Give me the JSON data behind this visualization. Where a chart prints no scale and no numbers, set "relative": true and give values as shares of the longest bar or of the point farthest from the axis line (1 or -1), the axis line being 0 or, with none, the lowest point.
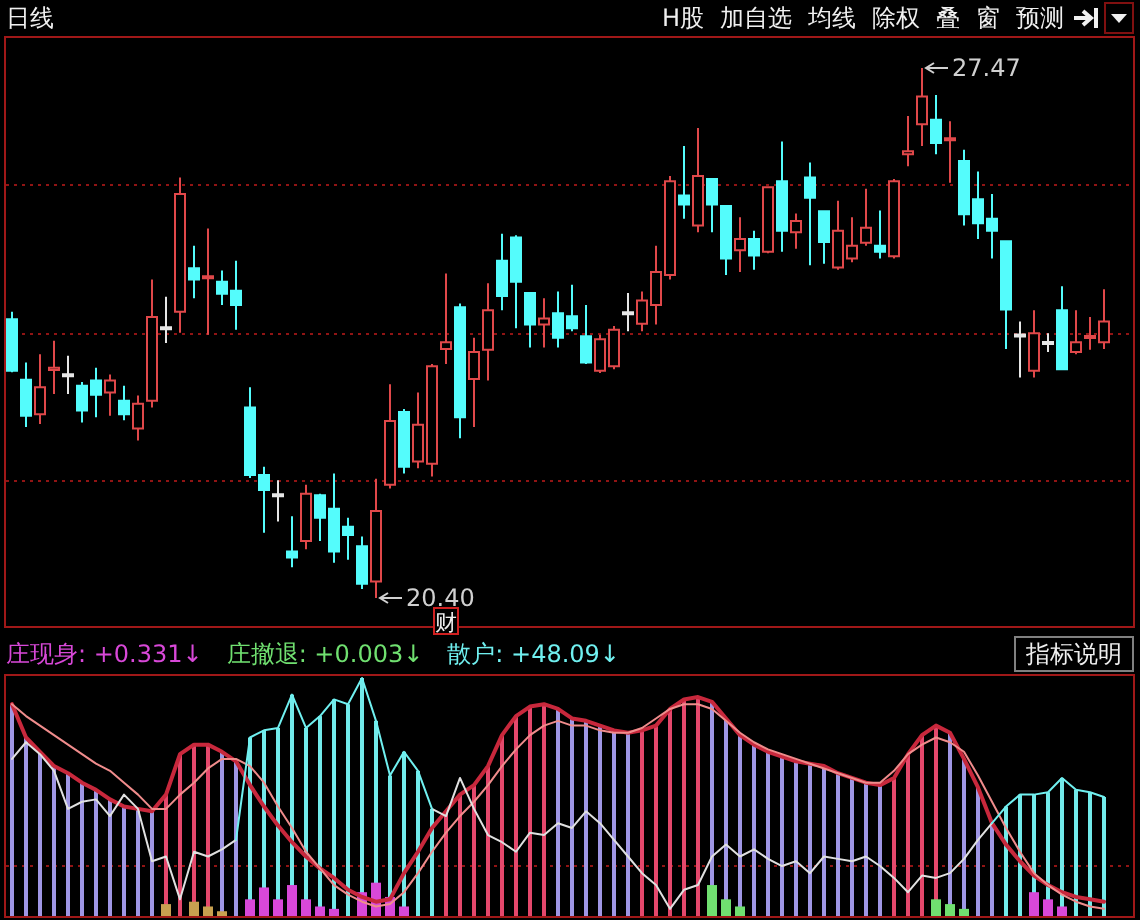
{
  "chart_data": [
    {
      "type": "candlestick",
      "title": "日线",
      "categories": [
        null,
        null,
        null,
        null,
        null,
        null,
        null,
        null,
        null,
        null,
        null,
        null,
        null,
        null,
        null,
        null,
        null,
        null,
        null,
        null,
        null,
        null,
        null,
        null,
        null,
        null,
        null,
        null,
        null,
        null,
        null,
        null,
        null,
        null,
        null,
        null,
        null,
        null,
        null,
        null,
        null,
        null,
        null,
        null,
        null,
        null,
        null,
        null,
        null,
        null,
        null,
        null,
        null,
        null,
        null,
        null,
        null,
        null,
        null,
        null,
        null,
        null,
        null,
        null,
        null,
        null,
        null,
        null,
        null,
        null,
        null,
        null,
        null,
        null,
        null,
        null,
        null,
        null,
        null
      ],
      "ohlc": [
        [
          24.12,
          24.22,
          23.41,
          23.43
        ],
        [
          23.31,
          23.54,
          22.68,
          22.83
        ],
        [
          22.85,
          23.65,
          22.72,
          23.21
        ],
        [
          23.44,
          23.83,
          23.12,
          23.47
        ],
        [
          23.37,
          23.63,
          23.12,
          23.37
        ],
        [
          23.23,
          23.28,
          22.74,
          22.9
        ],
        [
          23.3,
          23.47,
          22.81,
          23.11
        ],
        [
          23.14,
          23.38,
          22.83,
          23.3
        ],
        [
          23.03,
          23.23,
          22.77,
          22.85
        ],
        [
          22.66,
          23.1,
          22.5,
          22.99
        ],
        [
          23.03,
          24.65,
          22.94,
          24.15
        ],
        [
          24.0,
          24.42,
          23.8,
          24.0
        ],
        [
          24.22,
          26.01,
          23.94,
          25.79
        ],
        [
          24.8,
          25.1,
          24.4,
          24.65
        ],
        [
          24.67,
          25.33,
          23.91,
          24.69
        ],
        [
          24.62,
          24.77,
          24.31,
          24.46
        ],
        [
          24.5,
          24.9,
          23.98,
          24.31
        ],
        [
          22.94,
          23.21,
          22.0,
          22.04
        ],
        [
          22.04,
          22.15,
          21.27,
          21.84
        ],
        [
          21.77,
          21.97,
          21.42,
          21.77
        ],
        [
          21.02,
          21.49,
          20.81,
          20.94
        ],
        [
          21.16,
          21.91,
          21.05,
          21.79
        ],
        [
          21.77,
          21.79,
          21.16,
          21.47
        ],
        [
          21.59,
          22.06,
          20.87,
          21.02
        ],
        [
          21.35,
          21.47,
          20.91,
          21.24
        ],
        [
          21.09,
          21.22,
          20.52,
          20.59
        ],
        [
          20.62,
          21.99,
          20.4,
          21.56
        ],
        [
          21.91,
          23.25,
          21.86,
          22.76
        ],
        [
          22.88,
          22.92,
          22.06,
          22.15
        ],
        [
          22.22,
          23.14,
          22.13,
          22.71
        ],
        [
          22.19,
          23.52,
          22.02,
          23.49
        ],
        [
          23.72,
          24.73,
          23.52,
          23.81
        ],
        [
          24.28,
          24.33,
          22.53,
          22.81
        ],
        [
          23.32,
          23.87,
          22.68,
          23.68
        ],
        [
          23.71,
          24.6,
          23.3,
          24.24
        ],
        [
          24.9,
          25.26,
          24.24,
          24.43
        ],
        [
          25.21,
          25.24,
          24.0,
          24.62
        ],
        [
          24.47,
          24.47,
          23.74,
          24.05
        ],
        [
          24.05,
          24.4,
          23.74,
          24.13
        ],
        [
          24.2,
          24.49,
          23.74,
          23.87
        ],
        [
          24.16,
          24.58,
          23.96,
          24.0
        ],
        [
          23.89,
          24.31,
          23.52,
          23.54
        ],
        [
          23.43,
          23.91,
          23.4,
          23.85
        ],
        [
          23.49,
          24.03,
          23.45,
          23.98
        ],
        [
          24.2,
          24.47,
          23.96,
          24.2
        ],
        [
          24.06,
          24.49,
          23.96,
          24.37
        ],
        [
          24.31,
          25.1,
          24.05,
          24.75
        ],
        [
          24.71,
          26.03,
          24.65,
          25.96
        ],
        [
          25.77,
          26.43,
          25.46,
          25.65
        ],
        [
          25.37,
          26.67,
          25.28,
          26.03
        ],
        [
          25.99,
          25.99,
          25.28,
          25.65
        ],
        [
          25.63,
          25.63,
          24.71,
          24.93
        ],
        [
          25.04,
          25.48,
          24.75,
          25.19
        ],
        [
          25.19,
          25.3,
          24.78,
          24.97
        ],
        [
          25.02,
          25.88,
          25.0,
          25.88
        ],
        [
          25.96,
          26.49,
          25.02,
          25.3
        ],
        [
          25.28,
          25.53,
          25.06,
          25.43
        ],
        [
          26.01,
          26.21,
          24.84,
          25.74
        ],
        [
          25.56,
          25.56,
          24.86,
          25.15
        ],
        [
          24.81,
          25.7,
          24.78,
          25.3
        ],
        [
          24.93,
          25.48,
          24.88,
          25.1
        ],
        [
          25.14,
          25.86,
          25.1,
          25.34
        ],
        [
          25.1,
          25.57,
          24.93,
          25.02
        ],
        [
          24.96,
          25.99,
          24.93,
          25.96
        ],
        [
          26.32,
          26.83,
          26.16,
          26.36
        ],
        [
          26.72,
          27.47,
          26.43,
          27.09
        ],
        [
          26.78,
          27.11,
          26.32,
          26.47
        ],
        [
          26.51,
          26.76,
          25.94,
          26.53
        ],
        [
          26.23,
          26.38,
          25.37,
          25.52
        ],
        [
          25.72,
          26.09,
          25.19,
          25.4
        ],
        [
          25.46,
          25.79,
          24.93,
          25.3
        ],
        [
          25.16,
          25.16,
          23.72,
          24.25
        ],
        [
          23.9,
          24.09,
          23.34,
          23.9
        ],
        [
          23.43,
          24.24,
          23.34,
          23.93
        ],
        [
          23.8,
          23.93,
          23.68,
          23.8
        ],
        [
          24.24,
          24.56,
          23.45,
          23.45
        ],
        [
          23.68,
          24.24,
          23.65,
          23.81
        ],
        [
          23.87,
          24.15,
          23.71,
          23.89
        ],
        [
          23.81,
          24.52,
          23.72,
          24.09
        ]
      ],
      "colors": [
        "#54fcfc",
        "#54fcfc",
        "#e0484a",
        "#e0484a",
        "#e6e6e6",
        "#54fcfc",
        "#54fcfc",
        "#e0484a",
        "#54fcfc",
        "#e0484a",
        "#e0484a",
        "#e6e6e6",
        "#e0484a",
        "#54fcfc",
        "#e0484a",
        "#54fcfc",
        "#54fcfc",
        "#54fcfc",
        "#54fcfc",
        "#e6e6e6",
        "#54fcfc",
        "#e0484a",
        "#54fcfc",
        "#54fcfc",
        "#54fcfc",
        "#54fcfc",
        "#e0484a",
        "#e0484a",
        "#54fcfc",
        "#e0484a",
        "#e0484a",
        "#e0484a",
        "#54fcfc",
        "#e0484a",
        "#e0484a",
        "#54fcfc",
        "#54fcfc",
        "#54fcfc",
        "#e0484a",
        "#54fcfc",
        "#54fcfc",
        "#54fcfc",
        "#e0484a",
        "#e0484a",
        "#e6e6e6",
        "#e0484a",
        "#e0484a",
        "#e0484a",
        "#54fcfc",
        "#e0484a",
        "#54fcfc",
        "#54fcfc",
        "#e0484a",
        "#54fcfc",
        "#e0484a",
        "#54fcfc",
        "#e0484a",
        "#54fcfc",
        "#54fcfc",
        "#e0484a",
        "#e0484a",
        "#e0484a",
        "#54fcfc",
        "#e0484a",
        "#e0484a",
        "#e0484a",
        "#54fcfc",
        "#e0484a",
        "#54fcfc",
        "#54fcfc",
        "#54fcfc",
        "#54fcfc",
        "#e6e6e6",
        "#e0484a",
        "#e6e6e6",
        "#54fcfc",
        "#e0484a",
        "#e0484a",
        "#e0484a"
      ],
      "ref_lines": [
        {
          "axis": "y",
          "value": 25.91,
          "color": "#901414",
          "line_style": "dotted"
        },
        {
          "axis": "y",
          "value": 23.92,
          "color": "#901414",
          "line_style": "dotted"
        },
        {
          "axis": "y",
          "value": 21.96,
          "color": "#901414",
          "line_style": "dotted"
        }
      ],
      "annotations": [
        "27.47",
        "20.40",
        "财",
        "H股",
        "加自选",
        "均线",
        "除权",
        "叠",
        "窗",
        "预测"
      ]
    },
    {
      "type": "bar",
      "relative": true,
      "categories": [
        null,
        null,
        null,
        null,
        null,
        null,
        null,
        null,
        null,
        null,
        null,
        null,
        null,
        null,
        null,
        null,
        null,
        null,
        null,
        null,
        null,
        null,
        null,
        null,
        null,
        null,
        null,
        null,
        null,
        null,
        null,
        null,
        null,
        null,
        null,
        null,
        null,
        null,
        null,
        null,
        null,
        null,
        null,
        null,
        null,
        null,
        null,
        null,
        null,
        null,
        null,
        null,
        null,
        null,
        null,
        null,
        null,
        null,
        null,
        null,
        null,
        null,
        null,
        null,
        null,
        null,
        null,
        null,
        null,
        null,
        null,
        null,
        null,
        null,
        null,
        null,
        null,
        null,
        null
      ],
      "series": [
        {
          "values": [
            0.89,
            0.75,
            0.69,
            0.63,
            0.6,
            0.56,
            0.53,
            0.49,
            0.46,
            0.45,
            0.44,
            0.51,
            0.68,
            0.72,
            0.72,
            0.69,
            0.65,
            0.75,
            0.78,
            0.79,
            0.93,
            0.79,
            0.84,
            0.91,
            0.89,
            1.0,
            0.82,
            0.59,
            0.69,
            0.61,
            0.45,
            0.44,
            0.51,
            0.55,
            0.63,
            0.76,
            0.84,
            0.88,
            0.89,
            0.87,
            0.83,
            0.82,
            0.8,
            0.78,
            0.77,
            0.78,
            0.8,
            0.87,
            0.91,
            0.92,
            0.9,
            0.83,
            0.76,
            0.72,
            0.69,
            0.67,
            0.65,
            0.64,
            0.63,
            0.6,
            0.58,
            0.56,
            0.55,
            0.58,
            0.68,
            0.76,
            0.8,
            0.77,
            0.66,
            0.54,
            0.39,
            0.46,
            0.51,
            0.51,
            0.52,
            0.58,
            0.53,
            0.52,
            0.5
          ],
          "colors": [
            "#9f96e4",
            "#9f96e4",
            "#9f96e4",
            "#9f96e4",
            "#9f96e4",
            "#9f96e4",
            "#9f96e4",
            "#9f96e4",
            "#9f96e4",
            "#9f96e4",
            "#9f96e4",
            "#e4486c",
            "#e4486c",
            "#e4486c",
            "#e4486c",
            "#9f96e4",
            "#9f96e4",
            "#72eaea",
            "#72eaea",
            "#72eaea",
            "#72eaea",
            "#72eaea",
            "#72eaea",
            "#72eaea",
            "#72eaea",
            "#72eaea",
            "#72eaea",
            "#72eaea",
            "#72eaea",
            "#72eaea",
            "#72eaea",
            "#e4486c",
            "#e4486c",
            "#e4486c",
            "#e4486c",
            "#e4486c",
            "#e4486c",
            "#e4486c",
            "#e4486c",
            "#9f96e4",
            "#9f96e4",
            "#9f96e4",
            "#9f96e4",
            "#9f96e4",
            "#9f96e4",
            "#e4486c",
            "#e4486c",
            "#e4486c",
            "#e4486c",
            "#e4486c",
            "#9f96e4",
            "#9f96e4",
            "#9f96e4",
            "#9f96e4",
            "#9f96e4",
            "#9f96e4",
            "#9f96e4",
            "#9f96e4",
            "#9f96e4",
            "#9f96e4",
            "#9f96e4",
            "#9f96e4",
            "#9f96e4",
            "#e4486c",
            "#e4486c",
            "#e4486c",
            "#e4486c",
            "#9f96e4",
            "#9f96e4",
            "#9f96e4",
            "#9f96e4",
            "#72eaea",
            "#72eaea",
            "#72eaea",
            "#72eaea",
            "#72eaea",
            "#72eaea",
            "#72eaea",
            "#72eaea"
          ]
        },
        {
          "name": "庄现身: +0.331↓",
          "color": "#d848d8",
          "values": [
            null,
            null,
            null,
            null,
            null,
            null,
            null,
            null,
            null,
            null,
            null,
            null,
            null,
            null,
            null,
            null,
            null,
            0.07,
            0.12,
            0.07,
            0.13,
            0.07,
            0.04,
            0.03,
            null,
            0.1,
            0.14,
            0.08,
            0.04,
            null,
            null,
            null,
            null,
            null,
            null,
            null,
            null,
            null,
            null,
            null,
            null,
            null,
            null,
            null,
            null,
            null,
            null,
            null,
            null,
            null,
            null,
            null,
            null,
            null,
            null,
            null,
            null,
            null,
            null,
            null,
            null,
            null,
            null,
            null,
            null,
            null,
            null,
            null,
            null,
            null,
            null,
            null,
            null,
            0.1,
            0.07,
            0.04,
            null,
            null,
            null
          ]
        },
        {
          "name": "庄撤退: +0.003↓",
          "color": "#70e070",
          "values": [
            null,
            null,
            null,
            null,
            null,
            null,
            null,
            null,
            null,
            null,
            null,
            null,
            null,
            null,
            null,
            null,
            null,
            null,
            null,
            null,
            null,
            null,
            null,
            null,
            null,
            null,
            null,
            null,
            null,
            null,
            null,
            null,
            null,
            null,
            null,
            null,
            null,
            null,
            null,
            null,
            null,
            null,
            null,
            null,
            null,
            null,
            null,
            null,
            null,
            null,
            0.13,
            0.07,
            0.04,
            null,
            null,
            null,
            null,
            null,
            null,
            null,
            null,
            null,
            null,
            null,
            null,
            null,
            0.07,
            0.05,
            0.03,
            null,
            null,
            null,
            null,
            null,
            null,
            null,
            null,
            null,
            null
          ]
        },
        {
          "color": "#c8a050",
          "values": [
            null,
            null,
            null,
            null,
            null,
            null,
            null,
            null,
            null,
            null,
            null,
            0.05,
            null,
            0.06,
            0.04,
            0.02,
            null,
            null,
            null,
            null,
            null,
            null,
            null,
            null,
            null,
            null,
            null,
            null,
            null,
            null,
            null,
            null,
            null,
            null,
            null,
            null,
            null,
            null,
            null,
            null,
            null,
            null,
            null,
            null,
            null,
            null,
            null,
            null,
            null,
            null,
            null,
            null,
            null,
            null,
            null,
            null,
            null,
            null,
            null,
            null,
            null,
            null,
            null,
            null,
            null,
            null,
            null,
            null,
            null,
            null,
            null,
            null,
            null,
            null,
            null,
            null,
            null,
            null,
            null
          ]
        },
        {
          "type": "line",
          "color": "#c8283c",
          "values": [
            0.89,
            0.75,
            0.69,
            0.63,
            0.6,
            0.56,
            0.53,
            0.49,
            0.46,
            0.45,
            0.44,
            0.51,
            0.68,
            0.72,
            0.72,
            0.69,
            0.65,
            0.55,
            0.46,
            0.38,
            0.31,
            0.25,
            0.2,
            0.16,
            0.11,
            0.08,
            0.06,
            0.07,
            0.18,
            0.27,
            0.37,
            0.44,
            0.51,
            0.55,
            0.63,
            0.76,
            0.84,
            0.88,
            0.89,
            0.87,
            0.83,
            0.82,
            0.8,
            0.78,
            0.77,
            0.78,
            0.8,
            0.87,
            0.91,
            0.92,
            0.9,
            0.83,
            0.76,
            0.72,
            0.69,
            0.67,
            0.65,
            0.64,
            0.63,
            0.6,
            0.58,
            0.56,
            0.55,
            0.58,
            0.68,
            0.76,
            0.8,
            0.77,
            0.66,
            0.54,
            0.39,
            0.3,
            0.23,
            0.17,
            0.13,
            0.1,
            0.08,
            0.07,
            0.06
          ]
        },
        {
          "type": "line",
          "color": "#f08c8c",
          "values": [
            0.89,
            0.84,
            0.8,
            0.76,
            0.72,
            0.68,
            0.64,
            0.61,
            0.56,
            0.51,
            0.45,
            0.45,
            0.51,
            0.56,
            0.62,
            0.66,
            0.66,
            0.63,
            0.56,
            0.46,
            0.37,
            0.27,
            0.2,
            0.13,
            0.09,
            0.06,
            0.04,
            0.05,
            0.1,
            0.18,
            0.27,
            0.35,
            0.42,
            0.48,
            0.55,
            0.63,
            0.7,
            0.76,
            0.8,
            0.82,
            0.8,
            0.8,
            0.78,
            0.77,
            0.77,
            0.79,
            0.83,
            0.87,
            0.89,
            0.89,
            0.87,
            0.82,
            0.77,
            0.73,
            0.7,
            0.68,
            0.66,
            0.64,
            0.62,
            0.6,
            0.58,
            0.56,
            0.56,
            0.61,
            0.68,
            0.72,
            0.75,
            0.73,
            0.69,
            0.59,
            0.48,
            0.37,
            0.27,
            0.18,
            0.13,
            0.09,
            0.06,
            0.04,
            0.03
          ]
        },
        {
          "type": "line",
          "color": "#e0e0e0",
          "values": [
            0.66,
            0.73,
            0.68,
            0.61,
            0.45,
            0.48,
            0.49,
            0.42,
            0.51,
            0.45,
            0.23,
            0.25,
            0.07,
            0.27,
            0.25,
            0.28,
            0.32,
            null,
            null,
            null,
            null,
            null,
            null,
            null,
            null,
            null,
            null,
            null,
            null,
            null,
            0.45,
            0.42,
            0.58,
            0.45,
            0.34,
            0.31,
            0.27,
            0.35,
            0.34,
            0.39,
            0.37,
            0.44,
            0.39,
            0.32,
            0.25,
            0.18,
            0.13,
            0.03,
            0.11,
            0.13,
            0.25,
            0.3,
            0.25,
            0.28,
            0.24,
            0.21,
            0.23,
            0.18,
            0.25,
            0.24,
            0.23,
            0.25,
            0.21,
            0.16,
            0.1,
            0.17,
            0.16,
            0.18,
            0.24,
            0.32,
            0.39,
            null,
            null,
            null,
            null,
            null,
            null,
            null,
            null
          ]
        },
        {
          "type": "line",
          "name": "散户: +48.09↓",
          "color": "#70f0f0",
          "values": [
            null,
            null,
            null,
            null,
            null,
            null,
            null,
            null,
            null,
            null,
            null,
            null,
            null,
            null,
            null,
            null,
            0.32,
            0.75,
            0.78,
            0.79,
            0.93,
            0.79,
            0.84,
            0.91,
            0.89,
            1.0,
            0.82,
            0.59,
            0.69,
            0.61,
            0.45,
            null,
            null,
            null,
            null,
            null,
            null,
            null,
            null,
            null,
            null,
            null,
            null,
            null,
            null,
            null,
            null,
            null,
            null,
            null,
            null,
            null,
            null,
            null,
            null,
            null,
            null,
            null,
            null,
            null,
            null,
            null,
            null,
            null,
            null,
            null,
            null,
            null,
            null,
            null,
            0.39,
            0.46,
            0.51,
            0.51,
            0.52,
            0.58,
            0.53,
            0.52,
            0.5
          ]
        }
      ],
      "ref_lines": [
        {
          "axis": "y",
          "value": 0.21,
          "color": "#901414",
          "line_style": "dotted"
        }
      ],
      "legend": "top left",
      "annotations": [
        "指标说明"
      ]
    }
  ]
}
